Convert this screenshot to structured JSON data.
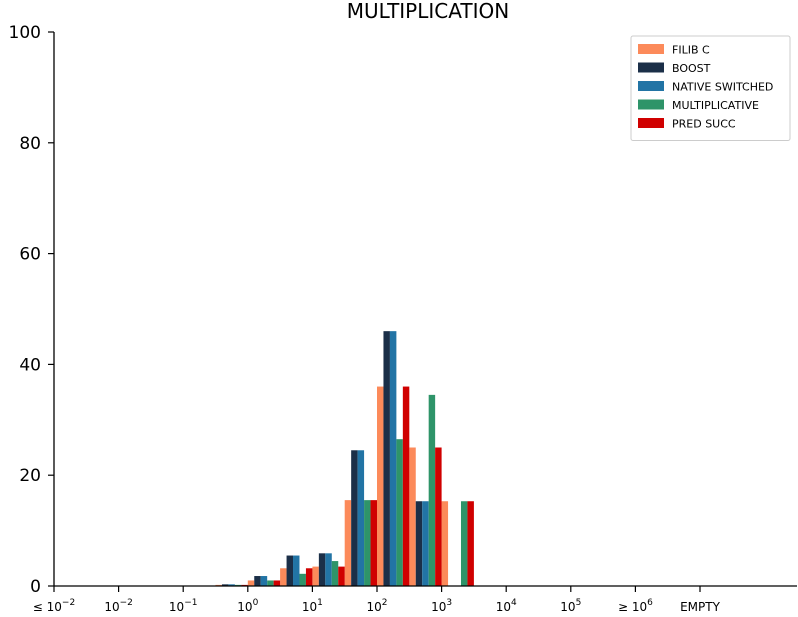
{
  "chart_data": {
    "type": "bar",
    "title": "MULTIPLICATION",
    "xlabel": "",
    "ylabel": "",
    "ylim": [
      0,
      100
    ],
    "yticks": [
      "0",
      "20",
      "40",
      "60",
      "80",
      "100"
    ],
    "xtick_labels": [
      {
        "pre": "≤ 10",
        "exp": "−2"
      },
      {
        "pre": "10",
        "exp": "−2"
      },
      {
        "pre": "10",
        "exp": "−1"
      },
      {
        "pre": "10",
        "exp": "0"
      },
      {
        "pre": "10",
        "exp": "1"
      },
      {
        "pre": "10",
        "exp": "2"
      },
      {
        "pre": "10",
        "exp": "3"
      },
      {
        "pre": "10",
        "exp": "4"
      },
      {
        "pre": "10",
        "exp": "5"
      },
      {
        "pre": "≥ 10",
        "exp": "6"
      },
      {
        "pre": "EMPTY",
        "exp": ""
      }
    ],
    "bin_edges_log10": [
      -1.5,
      -1.0,
      -0.5,
      0.0,
      0.5,
      1.0,
      1.5,
      2.0,
      2.5,
      3.0,
      3.5,
      4.0
    ],
    "legend_position": "top-right",
    "grid": false,
    "series": [
      {
        "name": "FILIB C",
        "color": "#fc8a5a",
        "values": [
          0,
          0,
          0.2,
          1.0,
          3.2,
          3.5,
          15.5,
          36.0,
          25.0,
          15.3,
          0
        ]
      },
      {
        "name": "BOOST",
        "color": "#1b2f48",
        "values": [
          0,
          0,
          0.3,
          1.8,
          5.5,
          5.9,
          24.5,
          46.0,
          15.3,
          0,
          0
        ]
      },
      {
        "name": "NATIVE SWITCHED",
        "color": "#2274a5",
        "values": [
          0,
          0,
          0.3,
          1.8,
          5.5,
          5.9,
          24.5,
          46.0,
          15.3,
          0,
          0
        ]
      },
      {
        "name": "MULTIPLICATIVE",
        "color": "#2e9469",
        "values": [
          0,
          0,
          0.2,
          1.0,
          2.2,
          4.5,
          15.5,
          26.5,
          34.5,
          15.3,
          0
        ]
      },
      {
        "name": "PRED SUCC",
        "color": "#d00000",
        "values": [
          0,
          0,
          0.2,
          1.0,
          3.2,
          3.5,
          15.5,
          36.0,
          25.0,
          15.3,
          0
        ]
      }
    ]
  }
}
